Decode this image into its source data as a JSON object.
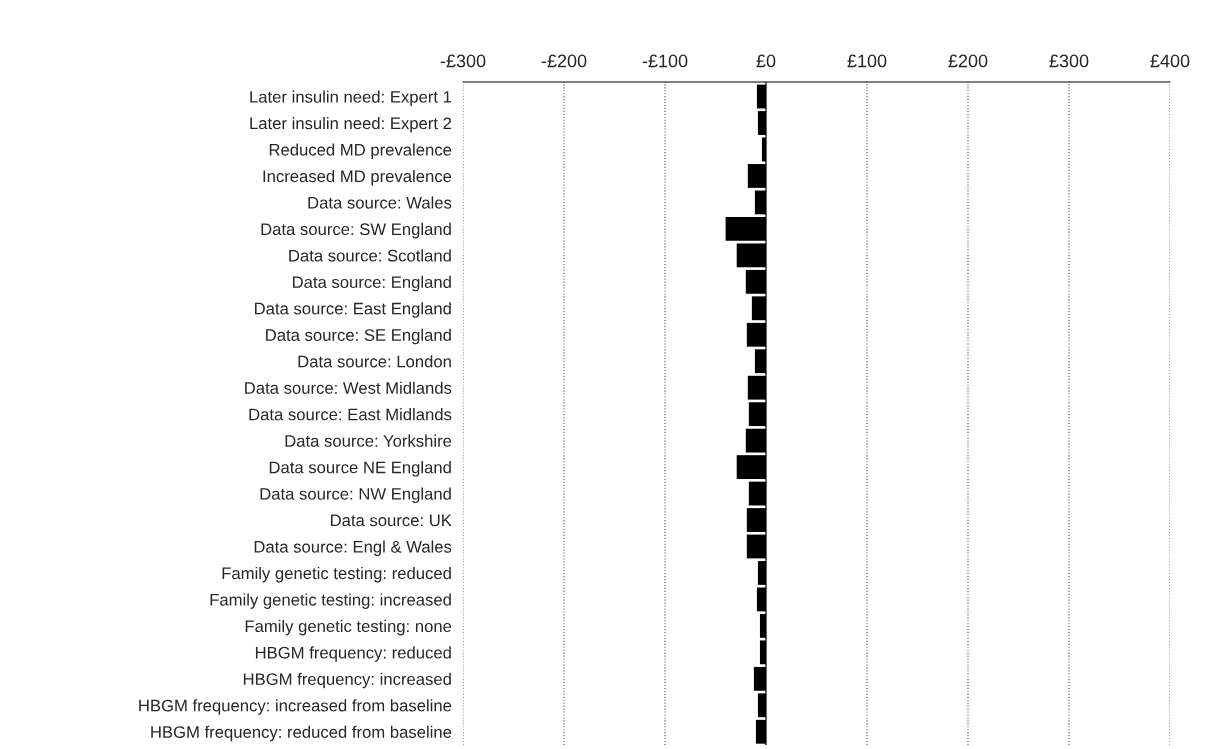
{
  "chart_data": {
    "type": "bar",
    "orientation": "horizontal",
    "categories": [
      "Later insulin need: Expert 1",
      "Later insulin need: Expert 2",
      "Reduced MD prevalence",
      "Increased MD prevalence",
      "Data source: Wales",
      "Data source: SW England",
      "Data source: Scotland",
      "Data source: England",
      "Data source: East England",
      "Data source: SE England",
      "Data source: London",
      "Data source: West Midlands",
      "Data source: East Midlands",
      "Data source: Yorkshire",
      "Data source NE England",
      "Data source: NW England",
      "Data source: UK",
      "Data source: Engl & Wales",
      "Family genetic testing: reduced",
      "Family genetic testing: increased",
      "Family genetic testing: none",
      "HBGM frequency: reduced",
      "HBGM frequency: increased",
      "HBGM frequency: increased from baseline",
      "HBGM frequency: reduced from baseline"
    ],
    "values": [
      -9,
      -8,
      -4,
      -18,
      -11,
      -40,
      -29,
      -20,
      -14,
      -19,
      -11,
      -18,
      -17,
      -20,
      -29,
      -17,
      -19,
      -19,
      -8,
      -9,
      -6,
      -6,
      -12,
      -8,
      -10
    ],
    "color": "#000000",
    "xlim": [
      -300,
      400
    ],
    "xticks": [
      {
        "value": -300,
        "label": "-£300"
      },
      {
        "value": -200,
        "label": "-£200"
      },
      {
        "value": -100,
        "label": "-£100"
      },
      {
        "value": 0,
        "label": "£0"
      },
      {
        "value": 100,
        "label": "£100"
      },
      {
        "value": 200,
        "label": "£200"
      },
      {
        "value": 300,
        "label": "£300"
      },
      {
        "value": 400,
        "label": "£400"
      }
    ],
    "grid": "x"
  }
}
